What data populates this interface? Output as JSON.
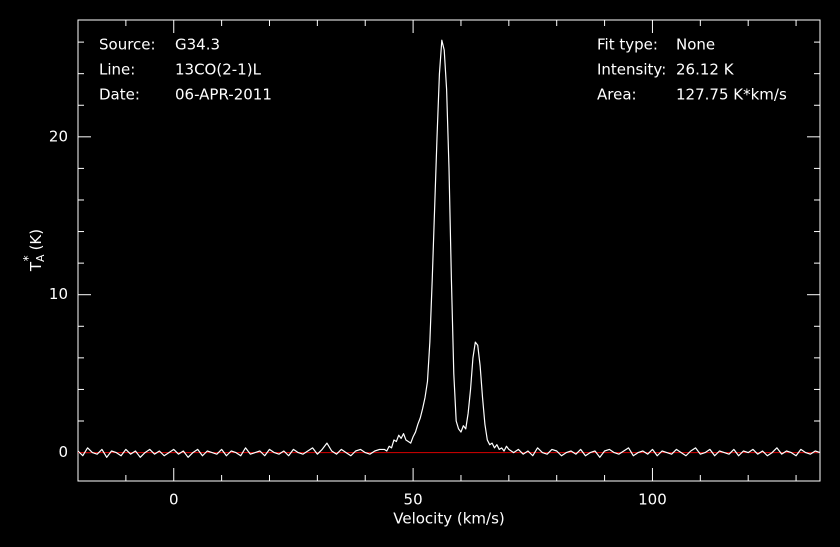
{
  "chart_data": {
    "type": "line",
    "xlabel": "Velocity (km/s)",
    "ylabel": {
      "symbol": "T",
      "sub": "A",
      "sup": "*",
      "unit": "(K)"
    },
    "annotations_left": [
      {
        "label": "Source:",
        "value": "G34.3"
      },
      {
        "label": "Line:",
        "value": "13CO(2-1)L"
      },
      {
        "label": "Date:",
        "value": "06-APR-2011"
      }
    ],
    "annotations_right": [
      {
        "label": "Fit type:",
        "value": "None"
      },
      {
        "label": "Intensity:",
        "value": "26.12 K"
      },
      {
        "label": "Area:",
        "value": "127.75 K*km/s"
      }
    ],
    "xlim": [
      -20,
      135
    ],
    "ylim": [
      -1.8,
      27.4
    ],
    "xticks": [
      0,
      50,
      100
    ],
    "yticks": [
      0,
      10,
      20
    ],
    "xminorticks": [
      -10,
      10,
      20,
      30,
      40,
      60,
      70,
      80,
      90,
      110,
      120,
      130
    ],
    "yminorticks": [
      2,
      4,
      6,
      8,
      12,
      14,
      16,
      18,
      22,
      24,
      26
    ],
    "baseline": {
      "value": 0,
      "color": "#c00000"
    },
    "series": [
      {
        "color": "#ffffff",
        "x": [
          -20,
          -19,
          -18,
          -17,
          -16,
          -15,
          -14,
          -13,
          -12,
          -11,
          -10,
          -9,
          -8,
          -7,
          -6,
          -5,
          -4,
          -3,
          -2,
          -1,
          0,
          1,
          2,
          3,
          4,
          5,
          6,
          7,
          8,
          9,
          10,
          11,
          12,
          13,
          14,
          15,
          16,
          17,
          18,
          19,
          20,
          21,
          22,
          23,
          24,
          25,
          26,
          27,
          28,
          29,
          30,
          31,
          32,
          33,
          34,
          35,
          36,
          37,
          38,
          39,
          40,
          41,
          42,
          43,
          44,
          44.5,
          45,
          45.5,
          46,
          46.5,
          47,
          47.5,
          48,
          48.5,
          49,
          49.5,
          50,
          50.5,
          51,
          51.5,
          52,
          52.5,
          53,
          53.5,
          54,
          54.5,
          55,
          55.5,
          56,
          56.5,
          57,
          57.5,
          58,
          58.5,
          59,
          59.5,
          60,
          60.5,
          61,
          61.5,
          62,
          62.5,
          63,
          63.5,
          64,
          64.5,
          65,
          65.5,
          66,
          66.5,
          67,
          67.5,
          68,
          68.5,
          69,
          69.5,
          70,
          71,
          72,
          73,
          74,
          75,
          76,
          77,
          78,
          79,
          80,
          81,
          82,
          83,
          84,
          85,
          86,
          87,
          88,
          89,
          90,
          91,
          92,
          93,
          94,
          95,
          96,
          97,
          98,
          99,
          100,
          101,
          102,
          103,
          104,
          105,
          106,
          107,
          108,
          109,
          110,
          111,
          112,
          113,
          114,
          115,
          116,
          117,
          118,
          119,
          120,
          121,
          122,
          123,
          124,
          125,
          126,
          127,
          128,
          129,
          130,
          131,
          132,
          133,
          134,
          135
        ],
        "values": [
          0.1,
          -0.2,
          0.3,
          0.0,
          -0.1,
          0.2,
          -0.3,
          0.1,
          0.0,
          -0.2,
          0.2,
          -0.1,
          0.1,
          -0.3,
          0.0,
          0.2,
          -0.1,
          0.1,
          -0.2,
          0.0,
          0.2,
          -0.1,
          0.1,
          -0.3,
          0.0,
          0.2,
          -0.2,
          0.1,
          0.0,
          -0.1,
          0.2,
          -0.2,
          0.1,
          0.0,
          -0.2,
          0.3,
          -0.1,
          0.0,
          0.1,
          -0.2,
          0.2,
          0.0,
          -0.1,
          0.1,
          -0.2,
          0.2,
          0.0,
          -0.1,
          0.1,
          0.3,
          -0.1,
          0.2,
          0.6,
          0.1,
          -0.1,
          0.2,
          0.0,
          -0.2,
          0.1,
          0.2,
          0.0,
          -0.1,
          0.1,
          0.2,
          0.2,
          0.1,
          0.4,
          0.3,
          0.8,
          0.7,
          1.1,
          0.9,
          1.2,
          0.8,
          0.7,
          0.6,
          1.0,
          1.3,
          1.8,
          2.2,
          2.8,
          3.5,
          4.5,
          7.0,
          11.0,
          15.5,
          20.0,
          24.0,
          26.12,
          25.5,
          23.0,
          18.0,
          11.0,
          5.0,
          2.0,
          1.5,
          1.3,
          1.7,
          1.5,
          2.5,
          4.0,
          6.0,
          7.0,
          6.8,
          5.5,
          3.5,
          1.8,
          0.8,
          0.5,
          0.6,
          0.3,
          0.5,
          0.2,
          0.3,
          0.1,
          0.4,
          0.2,
          0.0,
          0.2,
          -0.1,
          0.1,
          -0.2,
          0.3,
          0.0,
          -0.1,
          0.2,
          0.1,
          -0.2,
          0.0,
          0.1,
          -0.1,
          0.2,
          -0.2,
          0.0,
          0.1,
          -0.3,
          0.1,
          0.2,
          0.0,
          -0.1,
          0.1,
          0.3,
          -0.2,
          0.0,
          0.1,
          -0.1,
          0.2,
          -0.2,
          0.1,
          0.0,
          -0.1,
          0.2,
          0.0,
          -0.2,
          0.1,
          0.3,
          -0.1,
          0.0,
          0.2,
          -0.2,
          0.1,
          0.0,
          -0.1,
          0.2,
          -0.2,
          0.1,
          0.0,
          0.2,
          -0.1,
          0.1,
          -0.2,
          0.0,
          0.3,
          -0.1,
          0.1,
          0.0,
          -0.2,
          0.2,
          0.0,
          -0.1,
          0.1,
          0.0
        ]
      }
    ]
  }
}
